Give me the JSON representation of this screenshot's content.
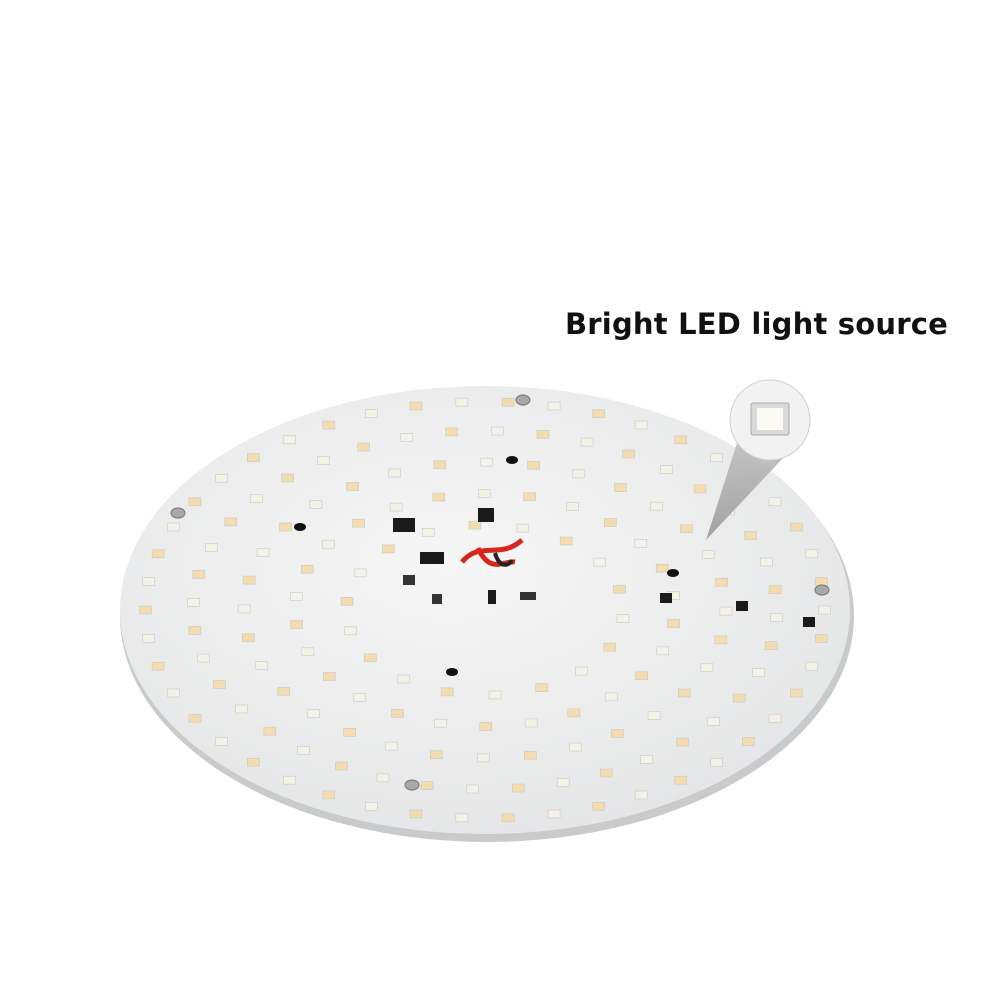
{
  "caption": "Bright LED light source",
  "colors": {
    "background": "#ffffff",
    "pcb": "#eeeff0",
    "led_warm": "#f3dcae",
    "led_cool": "#f4f1e6",
    "components": "#1a1a1a",
    "wires": "#d7261e"
  },
  "icons": [
    "led-chip-closeup",
    "screw",
    "mounting-hole"
  ]
}
